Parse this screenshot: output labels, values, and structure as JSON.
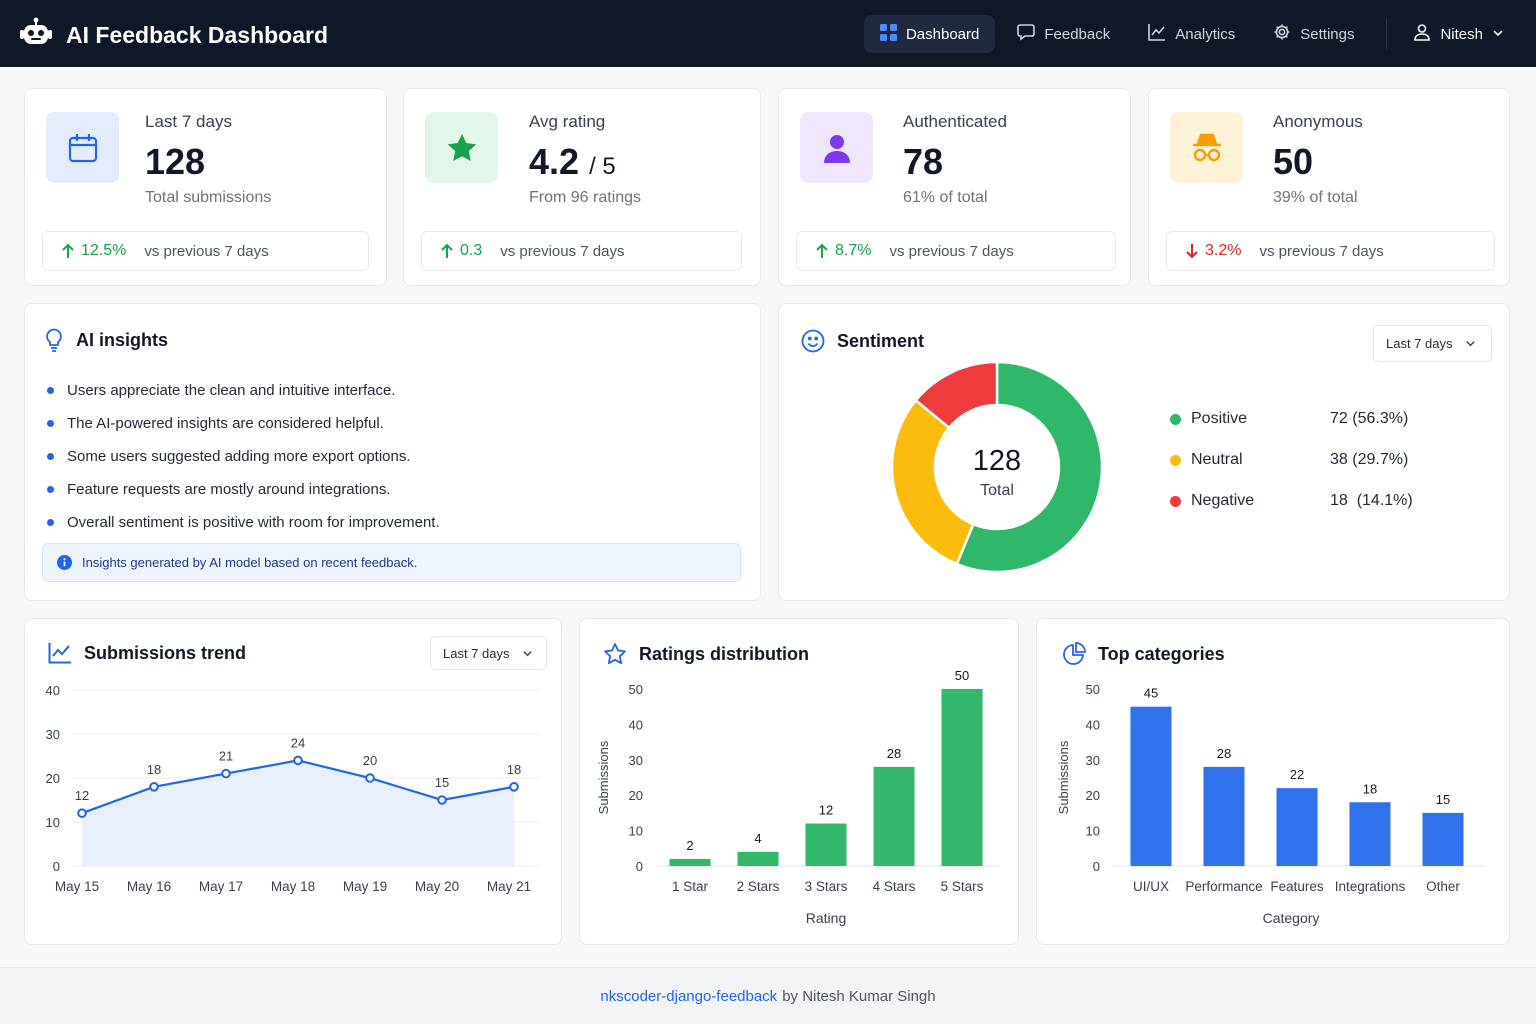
{
  "app": {
    "title": "AI Feedback Dashboard"
  },
  "nav": {
    "items": [
      {
        "label": "Dashboard",
        "icon": "grid-icon",
        "active": true
      },
      {
        "label": "Feedback",
        "icon": "chat-icon"
      },
      {
        "label": "Analytics",
        "icon": "chart-line-icon"
      },
      {
        "label": "Settings",
        "icon": "gear-icon"
      }
    ],
    "user": "Nitesh"
  },
  "stats": [
    {
      "label": "Last 7 days",
      "value": "128",
      "suffix": "",
      "sub": "Total submissions",
      "change": "12.5%",
      "direction": "up",
      "vs": "vs previous 7 days",
      "icon": "calendar-icon",
      "color": "#e4ecfb"
    },
    {
      "label": "Avg rating",
      "value": "4.2",
      "suffix": "/ 5",
      "sub": "From 96 ratings",
      "change": "0.3",
      "direction": "up",
      "vs": "vs previous 7 days",
      "icon": "star-icon",
      "color": "#e3f6ea"
    },
    {
      "label": "Authenticated",
      "value": "78",
      "suffix": "",
      "sub": "61% of total",
      "change": "8.7%",
      "direction": "up",
      "vs": "vs previous 7 days",
      "icon": "user-icon",
      "color": "#efe6fb"
    },
    {
      "label": "Anonymous",
      "value": "50",
      "suffix": "",
      "sub": "39% of total",
      "change": "3.2%",
      "direction": "down",
      "vs": "vs previous 7 days",
      "icon": "incognito-icon",
      "color": "#fdf1d6"
    }
  ],
  "insights": {
    "title": "AI insights",
    "items": [
      "Users appreciate the clean and intuitive interface.",
      "The AI-powered insights are considered helpful.",
      "Some users suggested adding more export options.",
      "Feature requests are mostly around integrations.",
      "Overall sentiment is positive with room for improvement."
    ],
    "note": "Insights generated by AI model based on recent feedback."
  },
  "sentiment": {
    "title": "Sentiment",
    "filter": "Last 7 days",
    "total": "128",
    "total_label": "Total",
    "items": [
      {
        "label": "Positive",
        "value": 72,
        "text": "72 (56.3%)",
        "color": "#2fb86a"
      },
      {
        "label": "Neutral",
        "value": 38,
        "text": "38 (29.7%)",
        "color": "#fbbc0e"
      },
      {
        "label": "Negative",
        "value": 18,
        "text": "18  (14.1%)",
        "color": "#ef3b3b"
      }
    ]
  },
  "trend": {
    "title": "Submissions trend",
    "filter": "Last 7 days"
  },
  "ratings": {
    "title": "Ratings distribution"
  },
  "categories": {
    "title": "Top categories"
  },
  "chart_data": [
    {
      "type": "line",
      "title": "Submissions trend",
      "x": [
        "May 15",
        "May 16",
        "May 17",
        "May 18",
        "May 19",
        "May 20",
        "May 21"
      ],
      "values": [
        12,
        18,
        21,
        24,
        20,
        15,
        18
      ],
      "ylim": [
        0,
        40
      ],
      "yticks": [
        0,
        10,
        20,
        30,
        40
      ],
      "color": "#2563eb",
      "grid": true
    },
    {
      "type": "bar",
      "title": "Ratings distribution",
      "categories": [
        "1 Star",
        "2 Stars",
        "3 Stars",
        "4 Stars",
        "5 Stars"
      ],
      "values": [
        2,
        4,
        12,
        28,
        50
      ],
      "xlabel": "Rating",
      "ylabel": "Submissions",
      "ylim": [
        0,
        50
      ],
      "yticks": [
        0,
        10,
        20,
        30,
        40,
        50
      ],
      "color": "#31b86a"
    },
    {
      "type": "bar",
      "title": "Top categories",
      "categories": [
        "UI/UX",
        "Performance",
        "Features",
        "Integrations",
        "Other"
      ],
      "values": [
        45,
        28,
        22,
        18,
        15
      ],
      "xlabel": "Category",
      "ylabel": "Submissions",
      "ylim": [
        0,
        50
      ],
      "yticks": [
        0,
        10,
        20,
        30,
        40,
        50
      ],
      "color": "#2f72ec"
    }
  ],
  "footer": {
    "link": "nkscoder-django-feedback",
    "text": "by Nitesh Kumar Singh"
  }
}
